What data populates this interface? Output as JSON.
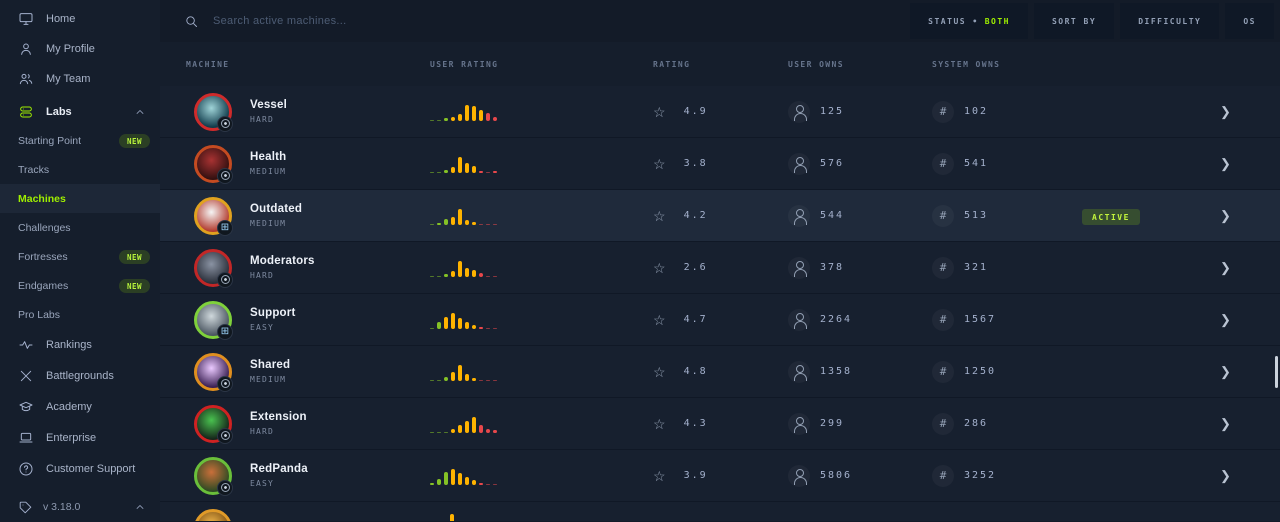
{
  "icons": {
    "star": "☆",
    "hash": "#",
    "chevron_right": "❯",
    "windows": "⊞"
  },
  "sidebar": {
    "items_top": [
      {
        "label": "Home"
      },
      {
        "label": "My Profile"
      },
      {
        "label": "My Team"
      }
    ],
    "labs_label": "Labs",
    "labs_children": [
      {
        "label": "Starting Point",
        "badge": "NEW"
      },
      {
        "label": "Tracks",
        "badge": ""
      },
      {
        "label": "Machines",
        "badge": "",
        "selected": true
      },
      {
        "label": "Challenges",
        "badge": ""
      },
      {
        "label": "Fortresses",
        "badge": "NEW"
      },
      {
        "label": "Endgames",
        "badge": "NEW"
      },
      {
        "label": "Pro Labs",
        "badge": ""
      }
    ],
    "items_bottom": [
      {
        "label": "Rankings"
      },
      {
        "label": "Battlegrounds"
      },
      {
        "label": "Academy"
      },
      {
        "label": "Enterprise"
      },
      {
        "label": "Customer Support"
      }
    ],
    "version": "v 3.18.0"
  },
  "topbar": {
    "search_placeholder": "Search active machines...",
    "filters": {
      "status_label": "STATUS •",
      "status_value": "BOTH",
      "sort_by": "SORT BY",
      "difficulty": "DIFFICULTY",
      "os": "OS"
    }
  },
  "badges": {
    "active": "ACTIVE"
  },
  "table": {
    "columns": {
      "machine": "MACHINE",
      "user_rating": "USER RATING",
      "rating": "RATING",
      "user_owns": "USER OWNS",
      "system_owns": "SYSTEM OWNS"
    },
    "rows": [
      {
        "name": "Vessel",
        "difficulty": "HARD",
        "rating": "4.9",
        "user_owns": "125",
        "system_owns": "102",
        "active": false,
        "avatar": {
          "ring": "#cf2b2b",
          "g1": "#9fd4d8",
          "g2": "#0f3a4a",
          "badge": "dot"
        },
        "histogram": {
          "heights": [
            1,
            1,
            3,
            4,
            7,
            16,
            15,
            11,
            8,
            4
          ],
          "colors": [
            "g",
            "g",
            "g",
            "y",
            "y",
            "y",
            "y",
            "y",
            "r",
            "r"
          ]
        }
      },
      {
        "name": "Health",
        "difficulty": "MEDIUM",
        "rating": "3.8",
        "user_owns": "576",
        "system_owns": "541",
        "active": false,
        "avatar": {
          "ring": "#c44b21",
          "g1": "#a83232",
          "g2": "#321010",
          "badge": "dot"
        },
        "histogram": {
          "heights": [
            1,
            1,
            3,
            6,
            16,
            10,
            7,
            2,
            1,
            2
          ],
          "colors": [
            "g",
            "g",
            "g",
            "y",
            "y",
            "y",
            "y",
            "r",
            "r",
            "r"
          ]
        }
      },
      {
        "name": "Outdated",
        "difficulty": "MEDIUM",
        "rating": "4.2",
        "user_owns": "544",
        "system_owns": "513",
        "active": true,
        "avatar": {
          "ring": "#e0a21f",
          "g1": "#f5f5f5",
          "g2": "#b23b2e",
          "badge": "win"
        },
        "histogram": {
          "heights": [
            1,
            2,
            6,
            8,
            16,
            5,
            3,
            1,
            1,
            1
          ],
          "colors": [
            "g",
            "g",
            "g",
            "y",
            "y",
            "y",
            "y",
            "r",
            "r",
            "r"
          ]
        }
      },
      {
        "name": "Moderators",
        "difficulty": "HARD",
        "rating": "2.6",
        "user_owns": "378",
        "system_owns": "321",
        "active": false,
        "avatar": {
          "ring": "#c22727",
          "g1": "#8a93a3",
          "g2": "#2a2f3a",
          "badge": "dot"
        },
        "histogram": {
          "heights": [
            1,
            1,
            3,
            6,
            16,
            9,
            7,
            4,
            1,
            1
          ],
          "colors": [
            "g",
            "g",
            "g",
            "y",
            "y",
            "y",
            "y",
            "r",
            "r",
            "r"
          ]
        }
      },
      {
        "name": "Support",
        "difficulty": "EASY",
        "rating": "4.7",
        "user_owns": "2264",
        "system_owns": "1567",
        "active": false,
        "avatar": {
          "ring": "#7fd13b",
          "g1": "#cfd8dc",
          "g2": "#4a5560",
          "badge": "win"
        },
        "histogram": {
          "heights": [
            1,
            7,
            12,
            16,
            11,
            7,
            4,
            2,
            1,
            1
          ],
          "colors": [
            "g",
            "g",
            "y",
            "y",
            "y",
            "y",
            "y",
            "r",
            "r",
            "r"
          ]
        }
      },
      {
        "name": "Shared",
        "difficulty": "MEDIUM",
        "rating": "4.8",
        "user_owns": "1358",
        "system_owns": "1250",
        "active": false,
        "avatar": {
          "ring": "#e08f1f",
          "g1": "#eac9ff",
          "g2": "#3a1f52",
          "badge": "dot"
        },
        "histogram": {
          "heights": [
            1,
            1,
            4,
            9,
            16,
            7,
            3,
            1,
            1,
            1
          ],
          "colors": [
            "g",
            "g",
            "g",
            "y",
            "y",
            "y",
            "y",
            "r",
            "r",
            "r"
          ]
        }
      },
      {
        "name": "Extension",
        "difficulty": "HARD",
        "rating": "4.3",
        "user_owns": "299",
        "system_owns": "286",
        "active": false,
        "avatar": {
          "ring": "#cf2222",
          "g1": "#49c24f",
          "g2": "#15241a",
          "badge": "dot"
        },
        "histogram": {
          "heights": [
            1,
            1,
            1,
            4,
            8,
            12,
            16,
            8,
            4,
            3
          ],
          "colors": [
            "g",
            "g",
            "g",
            "y",
            "y",
            "y",
            "y",
            "r",
            "r",
            "r"
          ]
        }
      },
      {
        "name": "RedPanda",
        "difficulty": "EASY",
        "rating": "3.9",
        "user_owns": "5806",
        "system_owns": "3252",
        "active": false,
        "avatar": {
          "ring": "#6abf3a",
          "g1": "#c96f3a",
          "g2": "#2e4a23",
          "badge": "dot"
        },
        "histogram": {
          "heights": [
            2,
            6,
            13,
            16,
            12,
            8,
            5,
            2,
            1,
            1
          ],
          "colors": [
            "g",
            "g",
            "g",
            "y",
            "y",
            "y",
            "y",
            "r",
            "r",
            "r"
          ]
        }
      }
    ],
    "partial_row": {
      "avatar": {
        "ring": "#e09a28",
        "g1": "#f2b84b",
        "g2": "#7a4d12",
        "badge": "none"
      },
      "histogram": {
        "heights": [
          12
        ],
        "colors": [
          "y"
        ]
      }
    }
  }
}
